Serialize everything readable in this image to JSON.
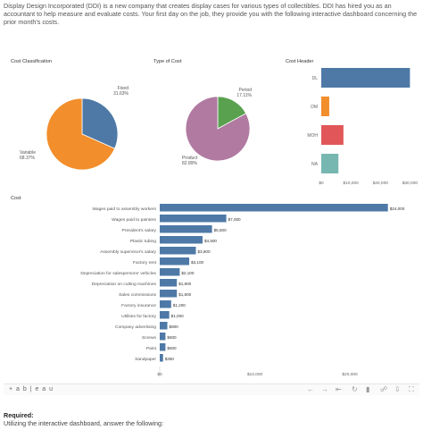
{
  "intro_text": "Display Design Incorporated (DDI) is a new company that creates display cases for various types of collectibles. DDI has hired you as an accountant to help measure and evaluate costs. Your first day on the job, they provide you with the following interactive dashboard concerning the prior month's costs.",
  "required_title": "Required:",
  "required_text": "Utilizing the interactive dashboard, answer the following:",
  "toolbar": {
    "logo": "+ a b | e a u"
  },
  "chart_data": [
    {
      "type": "pie",
      "title": "Cost Classification",
      "slices": [
        {
          "label": "Fixed",
          "pct_label": "31.63%",
          "value": 31.63,
          "color": "#4e79a7"
        },
        {
          "label": "Variable",
          "pct_label": "68.37%",
          "value": 68.37,
          "color": "#f28e2b"
        }
      ]
    },
    {
      "type": "pie",
      "title": "Type of Cost",
      "slices": [
        {
          "label": "Period",
          "pct_label": "17.11%",
          "value": 17.11,
          "color": "#59a14f"
        },
        {
          "label": "Product",
          "pct_label": "82.89%",
          "value": 82.89,
          "color": "#b07aa1"
        }
      ]
    },
    {
      "type": "bar",
      "title": "Cost Header",
      "categories": [
        "DL",
        "DM",
        "MOH",
        "NA"
      ],
      "values": [
        30000,
        2700,
        7500,
        5800
      ],
      "colors": [
        "#4e79a7",
        "#f28e2b",
        "#e15759",
        "#76b7b2"
      ],
      "xticks": [
        "$0",
        "$10,000",
        "$20,000",
        "$30,000"
      ],
      "xlim": [
        0,
        32000
      ]
    },
    {
      "type": "bar",
      "title": "Cost",
      "categories": [
        "Wages paid to assembly workers",
        "Wages paid to painters",
        "President's salary",
        "Plastic tubing",
        "Assembly supervisor's salary",
        "Factory rent",
        "Depreciation for salespersons' vehicles",
        "Depreciation on cutting machines",
        "Sales commissions",
        "Factory insurance",
        "Utilities for factory",
        "Company advertising",
        "Screws",
        "Paint",
        "Sandpaper"
      ],
      "values": [
        24000,
        7000,
        5500,
        4500,
        3800,
        3100,
        2100,
        1800,
        1800,
        1200,
        1000,
        800,
        600,
        600,
        350
      ],
      "value_labels": [
        "$24,000",
        "$7,000",
        "$5,500",
        "$4,500",
        "$3,800",
        "$3,100",
        "$2,100",
        "$1,800",
        "$1,800",
        "$1,200",
        "$1,000",
        "$800",
        "$600",
        "$600",
        "$350"
      ],
      "color": "#4e79a7",
      "xticks": [
        "$0",
        "$10,000",
        "$20,000"
      ],
      "xlim": [
        0,
        26000
      ]
    }
  ]
}
